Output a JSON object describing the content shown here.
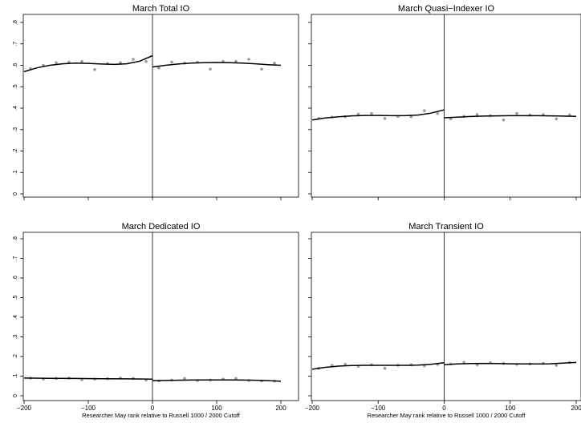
{
  "chart_data": [
    {
      "type": "scatter",
      "title": "March Total IO",
      "xlabel": "",
      "ylabel": "",
      "xlim": [
        -200,
        200
      ],
      "ylim": [
        0,
        0.8
      ],
      "yticks": [
        0,
        0.1,
        0.2,
        0.3,
        0.4,
        0.5,
        0.6,
        0.7,
        0.8
      ],
      "ytick_labels": [
        "0",
        ".1",
        ".2",
        ".3",
        ".4",
        ".5",
        ".6",
        ".7",
        ".8"
      ],
      "xticks": [
        -200,
        -100,
        0,
        100,
        200
      ],
      "xtick_labels": [],
      "cutoff": 0,
      "points": [
        [
          -190,
          0.585
        ],
        [
          -170,
          0.6
        ],
        [
          -150,
          0.612
        ],
        [
          -130,
          0.615
        ],
        [
          -110,
          0.618
        ],
        [
          -90,
          0.58
        ],
        [
          -70,
          0.608
        ],
        [
          -50,
          0.612
        ],
        [
          -30,
          0.628
        ],
        [
          -10,
          0.618
        ],
        [
          10,
          0.588
        ],
        [
          30,
          0.615
        ],
        [
          50,
          0.61
        ],
        [
          70,
          0.615
        ],
        [
          90,
          0.582
        ],
        [
          110,
          0.618
        ],
        [
          130,
          0.618
        ],
        [
          150,
          0.628
        ],
        [
          170,
          0.582
        ],
        [
          190,
          0.61
        ]
      ],
      "fit_left": [
        [
          -200,
          0.57
        ],
        [
          -180,
          0.588
        ],
        [
          -160,
          0.6
        ],
        [
          -140,
          0.607
        ],
        [
          -120,
          0.61
        ],
        [
          -100,
          0.609
        ],
        [
          -80,
          0.606
        ],
        [
          -60,
          0.604
        ],
        [
          -40,
          0.607
        ],
        [
          -20,
          0.619
        ],
        [
          0,
          0.645
        ]
      ],
      "fit_right": [
        [
          0,
          0.592
        ],
        [
          20,
          0.6
        ],
        [
          40,
          0.606
        ],
        [
          60,
          0.61
        ],
        [
          80,
          0.612
        ],
        [
          100,
          0.613
        ],
        [
          120,
          0.612
        ],
        [
          140,
          0.61
        ],
        [
          160,
          0.607
        ],
        [
          180,
          0.603
        ],
        [
          200,
          0.6
        ]
      ]
    },
    {
      "type": "scatter",
      "title": "March Quasi−Indexer IO",
      "xlabel": "",
      "ylabel": "",
      "xlim": [
        -200,
        200
      ],
      "ylim": [
        0,
        0.8
      ],
      "yticks": [
        0,
        0.1,
        0.2,
        0.3,
        0.4,
        0.5,
        0.6,
        0.7,
        0.8
      ],
      "ytick_labels": [],
      "xticks": [
        -200,
        -100,
        0,
        100,
        200
      ],
      "xtick_labels": [],
      "cutoff": 0,
      "points": [
        [
          -190,
          0.352
        ],
        [
          -170,
          0.358
        ],
        [
          -150,
          0.36
        ],
        [
          -130,
          0.372
        ],
        [
          -110,
          0.375
        ],
        [
          -90,
          0.352
        ],
        [
          -70,
          0.362
        ],
        [
          -50,
          0.36
        ],
        [
          -30,
          0.388
        ],
        [
          -10,
          0.375
        ],
        [
          10,
          0.35
        ],
        [
          30,
          0.362
        ],
        [
          50,
          0.37
        ],
        [
          70,
          0.365
        ],
        [
          90,
          0.345
        ],
        [
          110,
          0.375
        ],
        [
          130,
          0.368
        ],
        [
          150,
          0.37
        ],
        [
          170,
          0.35
        ],
        [
          190,
          0.368
        ]
      ],
      "fit_left": [
        [
          -200,
          0.345
        ],
        [
          -180,
          0.354
        ],
        [
          -160,
          0.36
        ],
        [
          -140,
          0.364
        ],
        [
          -120,
          0.366
        ],
        [
          -100,
          0.366
        ],
        [
          -80,
          0.365
        ],
        [
          -60,
          0.365
        ],
        [
          -40,
          0.368
        ],
        [
          -20,
          0.377
        ],
        [
          0,
          0.392
        ]
      ],
      "fit_right": [
        [
          0,
          0.355
        ],
        [
          20,
          0.358
        ],
        [
          40,
          0.361
        ],
        [
          60,
          0.363
        ],
        [
          80,
          0.364
        ],
        [
          100,
          0.365
        ],
        [
          120,
          0.365
        ],
        [
          140,
          0.365
        ],
        [
          160,
          0.364
        ],
        [
          180,
          0.363
        ],
        [
          200,
          0.362
        ]
      ]
    },
    {
      "type": "scatter",
      "title": "March Dedicated IO",
      "xlabel": "Researcher May rank relative to Russell 1000 / 2000 Cutoff",
      "ylabel": "",
      "xlim": [
        -200,
        200
      ],
      "ylim": [
        0,
        0.8
      ],
      "yticks": [
        0,
        0.1,
        0.2,
        0.3,
        0.4,
        0.5,
        0.6,
        0.7,
        0.8
      ],
      "ytick_labels": [
        "0",
        ".1",
        ".2",
        ".3",
        ".4",
        ".5",
        ".6",
        ".7",
        ".8"
      ],
      "xticks": [
        -200,
        -100,
        0,
        100,
        200
      ],
      "xtick_labels": [
        "−200",
        "−100",
        "0",
        "100",
        "200"
      ],
      "cutoff": 0,
      "points": [
        [
          -190,
          0.09
        ],
        [
          -170,
          0.085
        ],
        [
          -150,
          0.088
        ],
        [
          -130,
          0.09
        ],
        [
          -110,
          0.082
        ],
        [
          -90,
          0.085
        ],
        [
          -70,
          0.087
        ],
        [
          -50,
          0.09
        ],
        [
          -30,
          0.088
        ],
        [
          -10,
          0.08
        ],
        [
          10,
          0.075
        ],
        [
          30,
          0.08
        ],
        [
          50,
          0.088
        ],
        [
          70,
          0.078
        ],
        [
          90,
          0.08
        ],
        [
          110,
          0.085
        ],
        [
          130,
          0.088
        ],
        [
          150,
          0.078
        ],
        [
          170,
          0.075
        ],
        [
          190,
          0.075
        ]
      ],
      "fit_left": [
        [
          -200,
          0.09
        ],
        [
          -160,
          0.089
        ],
        [
          -120,
          0.088
        ],
        [
          -80,
          0.087
        ],
        [
          -40,
          0.086
        ],
        [
          0,
          0.085
        ]
      ],
      "fit_right": [
        [
          0,
          0.077
        ],
        [
          20,
          0.078
        ],
        [
          40,
          0.079
        ],
        [
          60,
          0.08
        ],
        [
          80,
          0.081
        ],
        [
          100,
          0.081
        ],
        [
          120,
          0.081
        ],
        [
          140,
          0.08
        ],
        [
          160,
          0.079
        ],
        [
          180,
          0.077
        ],
        [
          200,
          0.074
        ]
      ]
    },
    {
      "type": "scatter",
      "title": "March Transient IO",
      "xlabel": "Researcher May rank relative to Russell 1000 / 2000 Cutoff",
      "ylabel": "",
      "xlim": [
        -200,
        200
      ],
      "ylim": [
        0,
        0.8
      ],
      "yticks": [
        0,
        0.1,
        0.2,
        0.3,
        0.4,
        0.5,
        0.6,
        0.7,
        0.8
      ],
      "ytick_labels": [],
      "xticks": [
        -200,
        -100,
        0,
        100,
        200
      ],
      "xtick_labels": [
        "−200",
        "−100",
        "0",
        "100",
        "200"
      ],
      "cutoff": 0,
      "points": [
        [
          -190,
          0.14
        ],
        [
          -170,
          0.155
        ],
        [
          -150,
          0.16
        ],
        [
          -130,
          0.15
        ],
        [
          -110,
          0.158
        ],
        [
          -90,
          0.14
        ],
        [
          -70,
          0.155
        ],
        [
          -50,
          0.158
        ],
        [
          -30,
          0.152
        ],
        [
          -10,
          0.16
        ],
        [
          10,
          0.162
        ],
        [
          30,
          0.17
        ],
        [
          50,
          0.158
        ],
        [
          70,
          0.168
        ],
        [
          90,
          0.165
        ],
        [
          110,
          0.16
        ],
        [
          130,
          0.162
        ],
        [
          150,
          0.165
        ],
        [
          170,
          0.155
        ],
        [
          190,
          0.17
        ]
      ],
      "fit_left": [
        [
          -200,
          0.135
        ],
        [
          -180,
          0.145
        ],
        [
          -160,
          0.151
        ],
        [
          -140,
          0.154
        ],
        [
          -120,
          0.155
        ],
        [
          -100,
          0.155
        ],
        [
          -80,
          0.155
        ],
        [
          -60,
          0.155
        ],
        [
          -40,
          0.156
        ],
        [
          -20,
          0.16
        ],
        [
          0,
          0.168
        ]
      ],
      "fit_right": [
        [
          0,
          0.158
        ],
        [
          20,
          0.162
        ],
        [
          40,
          0.164
        ],
        [
          60,
          0.165
        ],
        [
          80,
          0.164
        ],
        [
          100,
          0.163
        ],
        [
          120,
          0.162
        ],
        [
          140,
          0.162
        ],
        [
          160,
          0.163
        ],
        [
          180,
          0.166
        ],
        [
          200,
          0.17
        ]
      ]
    }
  ]
}
